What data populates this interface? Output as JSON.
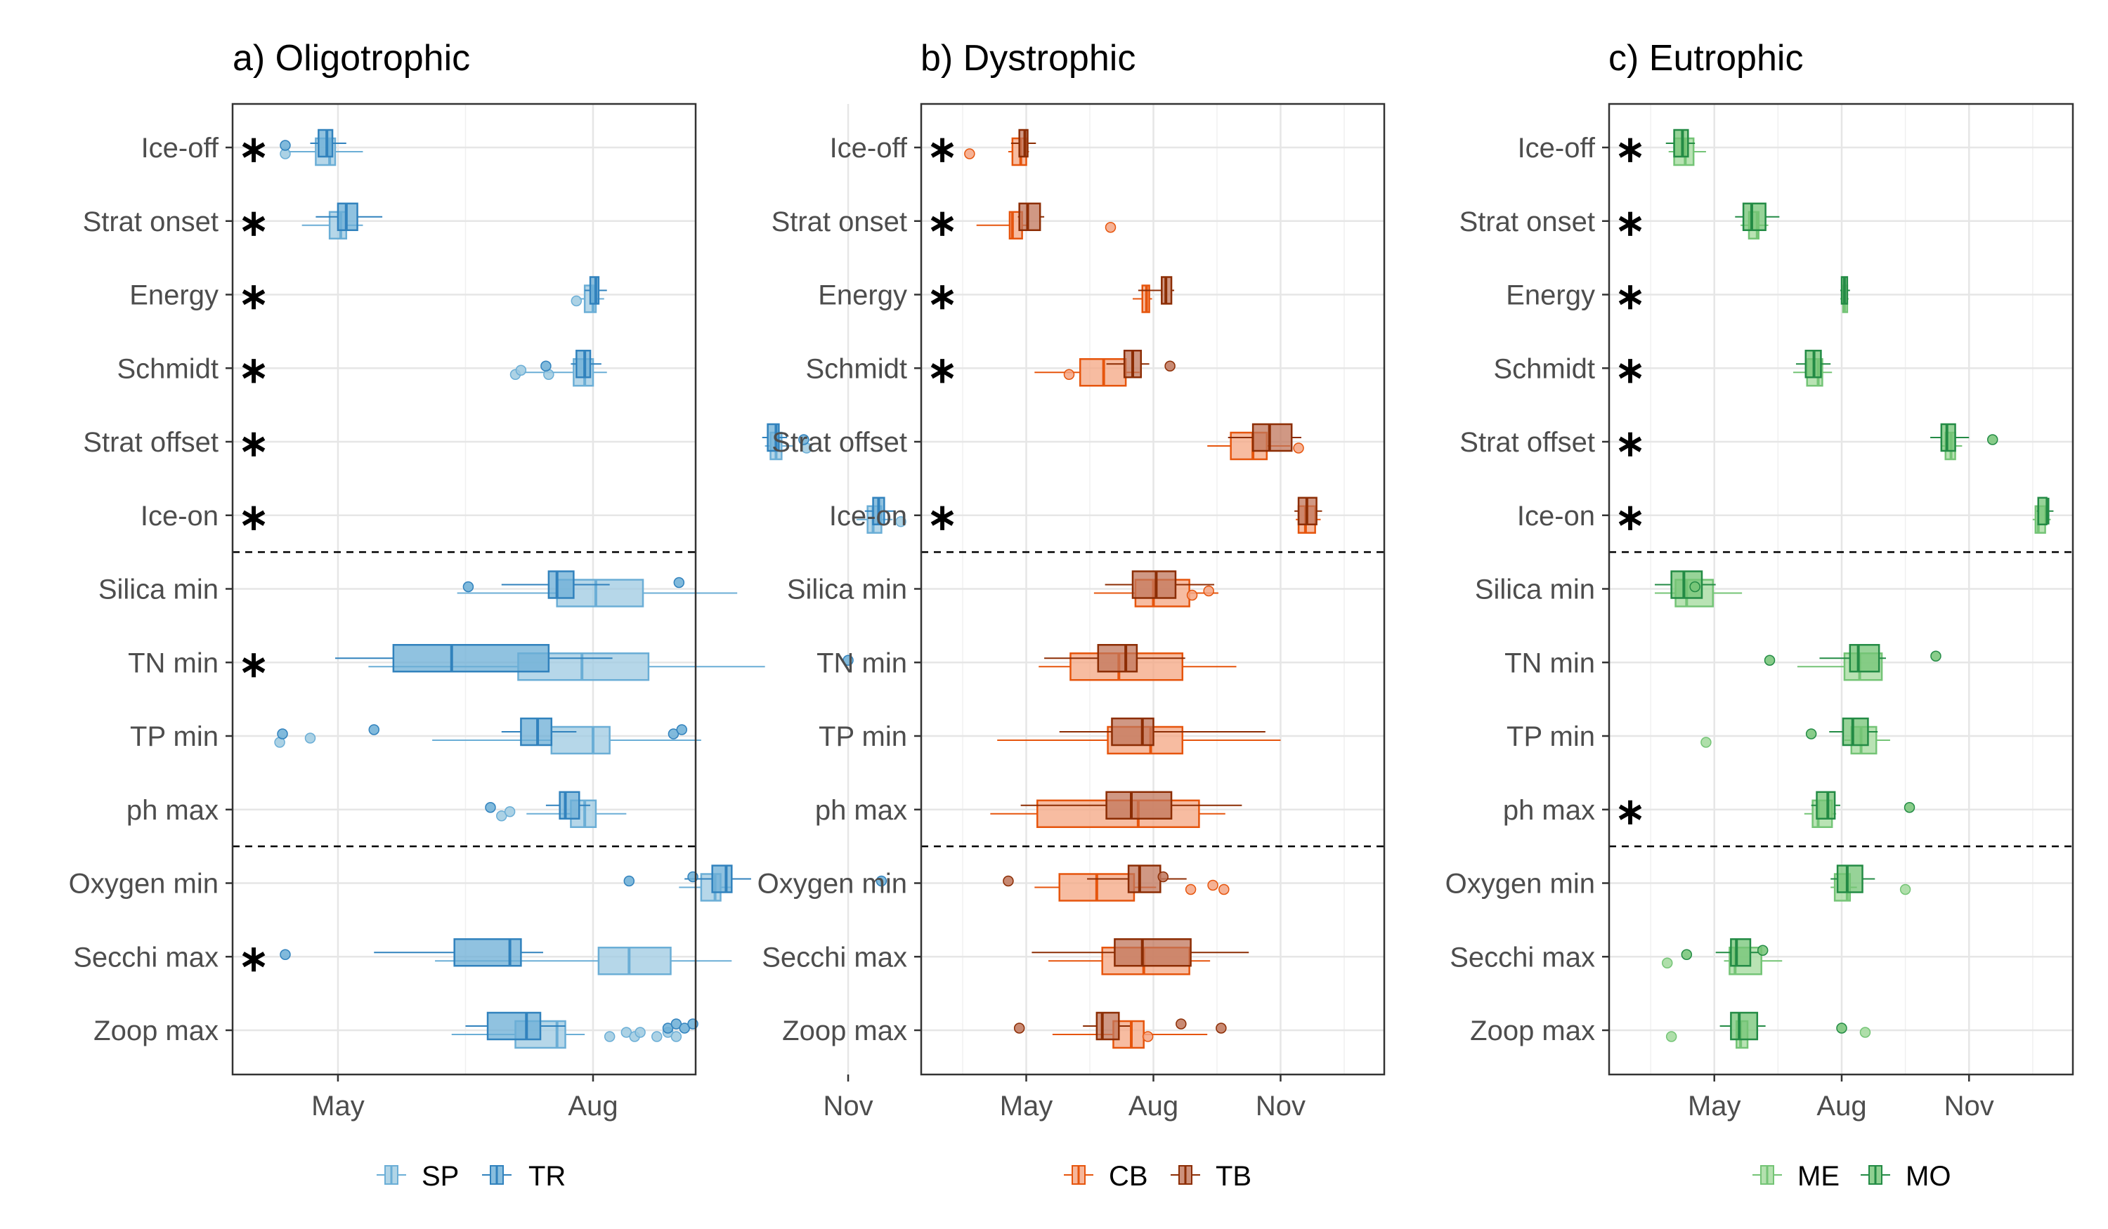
{
  "chart_data": [
    {
      "type": "boxplot",
      "title": "a) Oligotrophic",
      "x_ticks": [
        "May",
        "Aug",
        "Nov"
      ],
      "x_tick_doy": [
        121,
        213,
        305
      ],
      "x_range_doy": [
        83,
        250
      ],
      "categories": [
        "Ice-off",
        "Strat onset",
        "Energy",
        "Schmidt",
        "Strat offset",
        "Ice-on",
        "Silica min",
        "TN min",
        "TP min",
        "ph max",
        "Oxygen min",
        "Secchi max",
        "Zoop max"
      ],
      "significant": [
        "Ice-off",
        "Strat onset",
        "Energy",
        "Schmidt",
        "Strat offset",
        "Ice-on",
        "TN min",
        "Secchi max"
      ],
      "series": [
        {
          "name": "SP",
          "fill": "#9ecae1",
          "stroke": "#6baed6",
          "boxes": [
            [
              103,
              113,
              118,
              120,
              130
            ],
            [
              108,
              118,
              122,
              124,
              130
            ],
            [
              208,
              210,
              213,
              214,
              217
            ],
            [
              188,
              206,
              210,
              213,
              218
            ],
            [
              275,
              277,
              279,
              281,
              285
            ],
            [
              308,
              312,
              314,
              317,
              321
            ],
            [
              164,
              200,
              214,
              231,
              265
            ],
            [
              132,
              186,
              209,
              233,
              275
            ],
            [
              155,
              198,
              213,
              219,
              252
            ],
            [
              189,
              205,
              210,
              214,
              225
            ],
            [
              244,
              252,
              257,
              259,
              263
            ],
            [
              156,
              215,
              226,
              241,
              263
            ],
            [
              162,
              185,
              200,
              203,
              210
            ]
          ],
          "outliers": [
            [
              102
            ],
            [],
            [
              207
            ],
            [
              185,
              187,
              197
            ],
            [
              290
            ],
            [
              324
            ],
            [],
            [],
            [
              100,
              111
            ],
            [
              180,
              183
            ],
            [],
            [],
            [
              219,
              225,
              228,
              230,
              236,
              240,
              243
            ]
          ]
        },
        {
          "name": "TR",
          "fill": "#6baed6",
          "stroke": "#3182bd",
          "boxes": [
            [
              111,
              114,
              117,
              119,
              124
            ],
            [
              113,
              121,
              124,
              128,
              137
            ],
            [
              210,
              212,
              214,
              215,
              218
            ],
            [
              205,
              207,
              210,
              212,
              216
            ],
            [
              274,
              276,
              279,
              280,
              283
            ],
            [
              311,
              314,
              316,
              318,
              322
            ],
            [
              180,
              197,
              200,
              206,
              219
            ],
            [
              120,
              141,
              162,
              197,
              220
            ],
            [
              180,
              187,
              193,
              198,
              207
            ],
            [
              196,
              201,
              203,
              208,
              212
            ],
            [
              246,
              256,
              261,
              263,
              270
            ],
            [
              134,
              163,
              183,
              187,
              195
            ],
            [
              167,
              175,
              189,
              194,
              203
            ]
          ],
          "outliers": [
            [
              102
            ],
            [],
            [],
            [
              196
            ],
            [
              289
            ],
            [],
            [
              168,
              244
            ],
            [
              305
            ],
            [
              101,
              134,
              242,
              245
            ],
            [
              176
            ],
            [
              226,
              249,
              317
            ],
            [
              102
            ],
            [
              240,
              243,
              246,
              249
            ]
          ]
        }
      ]
    },
    {
      "type": "boxplot",
      "title": "b) Dystrophic",
      "x_ticks": [
        "May",
        "Aug",
        "Nov"
      ],
      "x_tick_doy": [
        121,
        213,
        305
      ],
      "x_range_doy": [
        45,
        380
      ],
      "categories": [
        "Ice-off",
        "Strat onset",
        "Energy",
        "Schmidt",
        "Strat offset",
        "Ice-on",
        "Silica min",
        "TN min",
        "TP min",
        "ph max",
        "Oxygen min",
        "Secchi max",
        "Zoop max"
      ],
      "significant": [
        "Ice-off",
        "Strat onset",
        "Energy",
        "Schmidt",
        "Ice-on"
      ],
      "series": [
        {
          "name": "CB",
          "fill": "#f4a582",
          "stroke": "#e6550d",
          "boxes": [
            [
              108,
              111,
              117,
              121,
              123
            ],
            [
              85,
              109,
              111,
              118,
              123
            ],
            [
              198,
              205,
              208,
              210,
              212
            ],
            [
              127,
              160,
              177,
              193,
              203
            ],
            [
              252,
              269,
              285,
              295,
              312
            ],
            [
              316,
              318,
              323,
              330,
              334
            ],
            [
              170,
              200,
              213,
              239,
              260
            ],
            [
              130,
              153,
              188,
              234,
              273
            ],
            [
              100,
              180,
              211,
              234,
              305
            ],
            [
              95,
              129,
              202,
              246,
              265
            ],
            [
              127,
              145,
              172,
              199,
              215
            ],
            [
              137,
              176,
              206,
              239,
              254
            ],
            [
              140,
              184,
              197,
              206,
              252
            ]
          ],
          "outliers": [
            [
              80
            ],
            [
              182
            ],
            [],
            [
              152
            ],
            [
              318
            ],
            [],
            [
              241,
              253
            ],
            [],
            [],
            [],
            [
              240,
              256,
              264
            ],
            [],
            [
              209
            ]
          ]
        },
        {
          "name": "TB",
          "fill": "#c0755b",
          "stroke": "#8c2d04",
          "boxes": [
            [
              110,
              116,
              120,
              122,
              128
            ],
            [
              115,
              116,
              122,
              131,
              134
            ],
            [
              202,
              219,
              222,
              226,
              228
            ],
            [
              179,
              192,
              198,
              204,
              210
            ],
            [
              267,
              285,
              297,
              313,
              320
            ],
            [
              315,
              318,
              324,
              331,
              335
            ],
            [
              178,
              198,
              215,
              229,
              257
            ],
            [
              134,
              173,
              193,
              201,
              236
            ],
            [
              145,
              183,
              205,
              213,
              294
            ],
            [
              117,
              179,
              197,
              226,
              277
            ],
            [
              165,
              195,
              203,
              218,
              237
            ],
            [
              125,
              185,
              205,
              240,
              282
            ],
            [
              162,
              172,
              176,
              188,
              196
            ]
          ],
          "outliers": [
            [],
            [],
            [],
            [
              225
            ],
            [],
            [],
            [],
            [],
            [],
            [],
            [
              108,
              220
            ],
            [],
            [
              116,
              233,
              262
            ]
          ]
        }
      ]
    },
    {
      "type": "boxplot",
      "title": "c) Eutrophic",
      "x_ticks": [
        "May",
        "Aug",
        "Nov"
      ],
      "x_tick_doy": [
        121,
        213,
        305
      ],
      "x_range_doy": [
        45,
        380
      ],
      "categories": [
        "Ice-off",
        "Strat onset",
        "Energy",
        "Schmidt",
        "Strat offset",
        "Ice-on",
        "Silica min",
        "TN min",
        "TP min",
        "ph max",
        "Oxygen min",
        "Secchi max",
        "Zoop max"
      ],
      "significant": [
        "Ice-off",
        "Strat onset",
        "Energy",
        "Schmidt",
        "Strat offset",
        "Ice-on",
        "ph max"
      ],
      "series": [
        {
          "name": "ME",
          "fill": "#a1d99b",
          "stroke": "#74c476",
          "boxes": [
            [
              88,
              92,
              100,
              106,
              115
            ],
            [
              140,
              146,
              152,
              153,
              160
            ],
            [
              212,
              214,
              215,
              217,
              218
            ],
            [
              178,
              188,
              196,
              199,
              206
            ],
            [
              285,
              288,
              292,
              295,
              300
            ],
            [
              351,
              353,
              355,
              360,
              364
            ],
            [
              78,
              93,
              101,
              120,
              141
            ],
            [
              181,
              215,
              226,
              242,
              242
            ],
            [
              215,
              220,
              227,
              238,
              248
            ],
            [
              186,
              192,
              196,
              206,
              209
            ],
            [
              205,
              208,
              217,
              219,
              224
            ],
            [
              128,
              132,
              136,
              155,
              170
            ],
            [
              138,
              137,
              140,
              145,
              145
            ]
          ],
          "outliers": [
            [],
            [],
            [],
            [],
            [],
            [],
            [],
            [],
            [
              115
            ],
            [],
            [
              259
            ],
            [
              87
            ],
            [
              90,
              230
            ]
          ]
        },
        {
          "name": "MO",
          "fill": "#74c476",
          "stroke": "#238b45",
          "boxes": [
            [
              86,
              92,
              98,
              102,
              107
            ],
            [
              136,
              142,
              148,
              158,
              168
            ],
            [
              212,
              213,
              215,
              217,
              219
            ],
            [
              180,
              187,
              193,
              198,
              205
            ],
            [
              277,
              285,
              289,
              295,
              305
            ],
            [
              354,
              355,
              362,
              361,
              366
            ],
            [
              78,
              90,
              99,
              112,
              122
            ],
            [
              197,
              219,
              225,
              240,
              245
            ],
            [
              204,
              214,
              221,
              232,
              239
            ],
            [
              191,
              195,
              203,
              208,
              212
            ],
            [
              205,
              210,
              217,
              228,
              237
            ],
            [
              122,
              133,
              137,
              147,
              153
            ],
            [
              125,
              133,
              139,
              152,
              158
            ]
          ],
          "outliers": [
            [],
            [],
            [],
            [],
            [
              322
            ],
            [],
            [
              107
            ],
            [
              161,
              281
            ],
            [
              191
            ],
            [
              262
            ],
            [],
            [
              101,
              156
            ],
            [
              213
            ]
          ]
        }
      ]
    }
  ]
}
